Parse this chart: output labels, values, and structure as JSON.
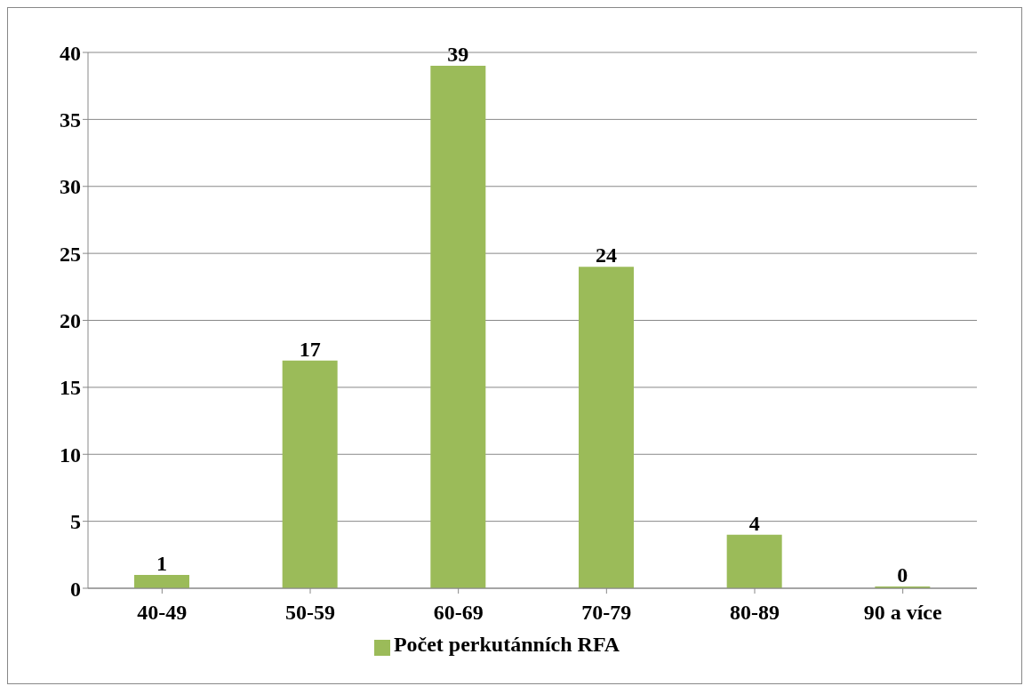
{
  "chart_data": {
    "type": "bar",
    "categories": [
      "40-49",
      "50-59",
      "60-69",
      "70-79",
      "80-89",
      "90 a více"
    ],
    "series": [
      {
        "name": "Počet perkutánních RFA",
        "color": "#9bbb59",
        "values": [
          1,
          17,
          39,
          24,
          4,
          0
        ]
      }
    ],
    "ylim": [
      0,
      40
    ],
    "yticks": [
      0,
      5,
      10,
      15,
      20,
      25,
      30,
      35,
      40
    ],
    "grid": "y",
    "data_labels": true,
    "legend": "bottom"
  }
}
